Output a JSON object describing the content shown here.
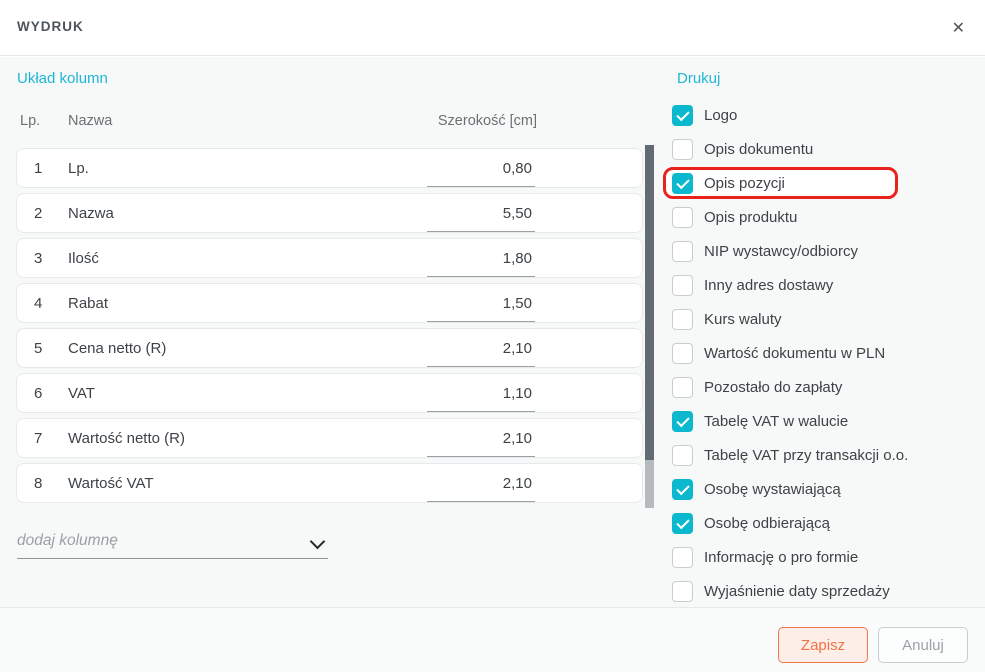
{
  "dialog": {
    "title": "WYDRUK",
    "close_glyph": "✕"
  },
  "left_panel": {
    "heading": "Układ kolumn",
    "table": {
      "headers": {
        "lp": "Lp.",
        "name": "Nazwa",
        "width": "Szerokość [cm]"
      },
      "rows": [
        {
          "lp": "1",
          "name": "Lp.",
          "width": "0,80"
        },
        {
          "lp": "2",
          "name": "Nazwa",
          "width": "5,50"
        },
        {
          "lp": "3",
          "name": "Ilość",
          "width": "1,80"
        },
        {
          "lp": "4",
          "name": "Rabat",
          "width": "1,50"
        },
        {
          "lp": "5",
          "name": "Cena netto (R)",
          "width": "2,10"
        },
        {
          "lp": "6",
          "name": "VAT",
          "width": "1,10"
        },
        {
          "lp": "7",
          "name": "Wartość netto (R)",
          "width": "2,10"
        },
        {
          "lp": "8",
          "name": "Wartość VAT",
          "width": "2,10"
        }
      ]
    },
    "add_column": {
      "placeholder": "dodaj kolumnę"
    }
  },
  "right_panel": {
    "heading": "Drukuj",
    "options": [
      {
        "label": "Logo",
        "checked": true,
        "highlighted": false
      },
      {
        "label": "Opis dokumentu",
        "checked": false,
        "highlighted": false
      },
      {
        "label": "Opis pozycji",
        "checked": true,
        "highlighted": true
      },
      {
        "label": "Opis produktu",
        "checked": false,
        "highlighted": false
      },
      {
        "label": "NIP wystawcy/odbiorcy",
        "checked": false,
        "highlighted": false
      },
      {
        "label": "Inny adres dostawy",
        "checked": false,
        "highlighted": false
      },
      {
        "label": "Kurs waluty",
        "checked": false,
        "highlighted": false
      },
      {
        "label": "Wartość dokumentu w PLN",
        "checked": false,
        "highlighted": false
      },
      {
        "label": "Pozostało do zapłaty",
        "checked": false,
        "highlighted": false
      },
      {
        "label": "Tabelę VAT w walucie",
        "checked": true,
        "highlighted": false
      },
      {
        "label": "Tabelę VAT przy transakcji o.o.",
        "checked": false,
        "highlighted": false
      },
      {
        "label": "Osobę wystawiającą",
        "checked": true,
        "highlighted": false
      },
      {
        "label": "Osobę odbierającą",
        "checked": true,
        "highlighted": false
      },
      {
        "label": "Informację o pro formie",
        "checked": false,
        "highlighted": false
      },
      {
        "label": "Wyjaśnienie daty sprzedaży",
        "checked": false,
        "highlighted": false
      }
    ]
  },
  "footer": {
    "save_label": "Zapisz",
    "cancel_label": "Anuluj"
  },
  "colors": {
    "accent_cyan_text": "#1fb6d5",
    "accent_cyan_checkbox": "#0cb8ce",
    "highlight_red": "#e8231d",
    "save_orange": "#ef734a",
    "text_dark": "#3d4247",
    "text_gray": "#6a7074"
  }
}
